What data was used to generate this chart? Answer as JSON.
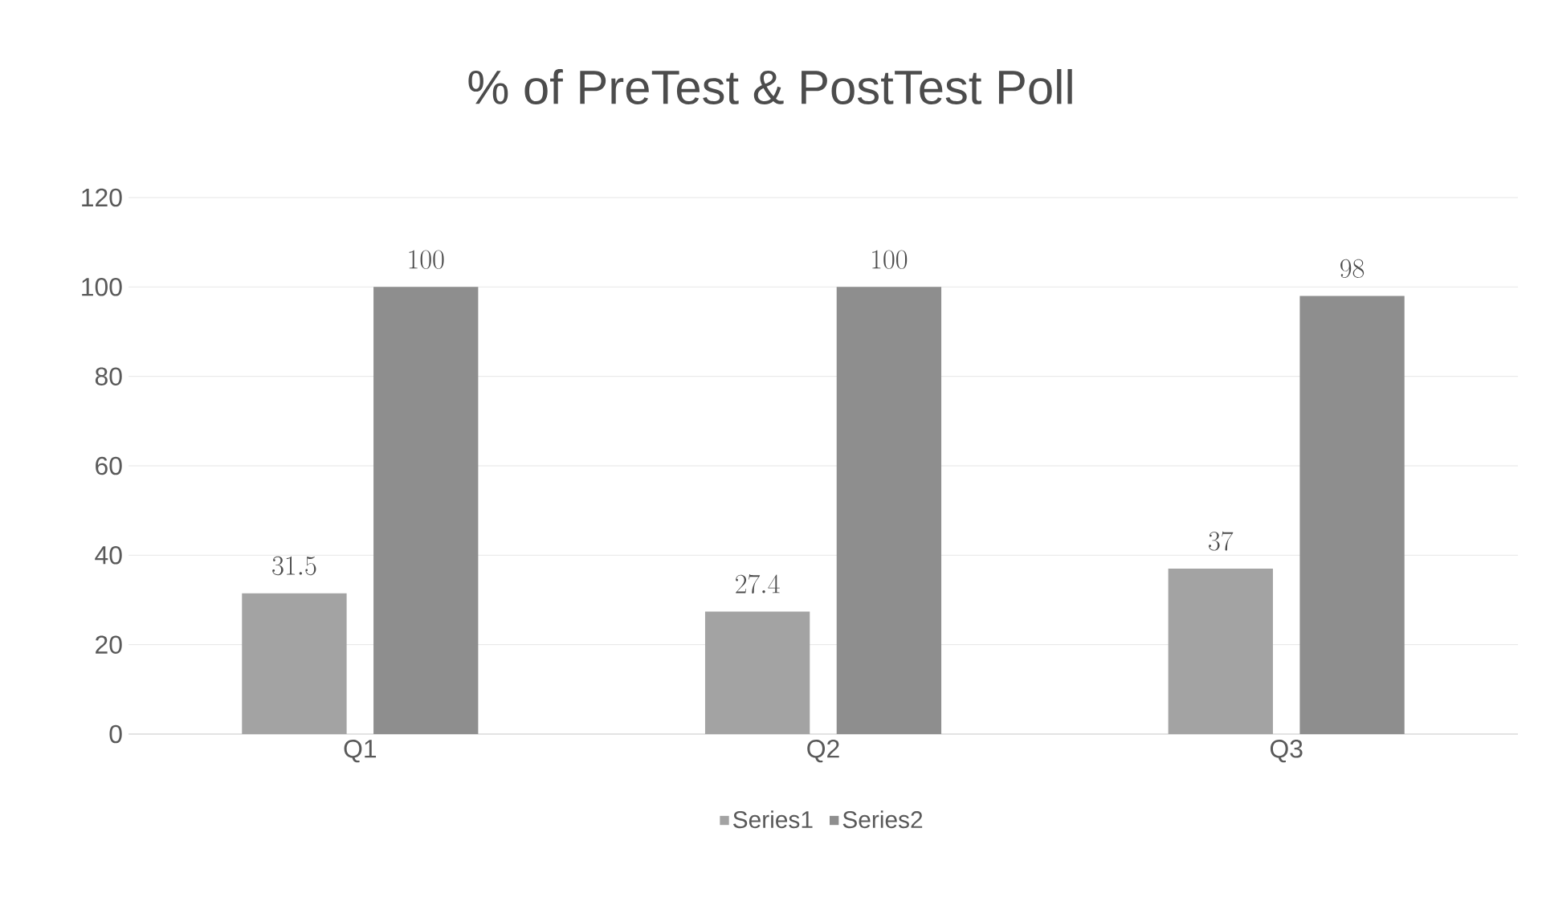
{
  "chart_data": {
    "type": "bar",
    "title": "% of PreTest & PostTest Poll",
    "categories": [
      "Q1",
      "Q2",
      "Q3"
    ],
    "series": [
      {
        "name": "Series1",
        "color": "#a3a3a3",
        "values": [
          31.5,
          27.4,
          37
        ]
      },
      {
        "name": "Series2",
        "color": "#8e8e8e",
        "values": [
          100,
          100,
          98
        ]
      }
    ],
    "ylim": [
      0,
      120
    ],
    "yticks": [
      0,
      20,
      40,
      60,
      80,
      100,
      120
    ],
    "grid": "y",
    "legend": "bottom",
    "data_labels": true
  }
}
